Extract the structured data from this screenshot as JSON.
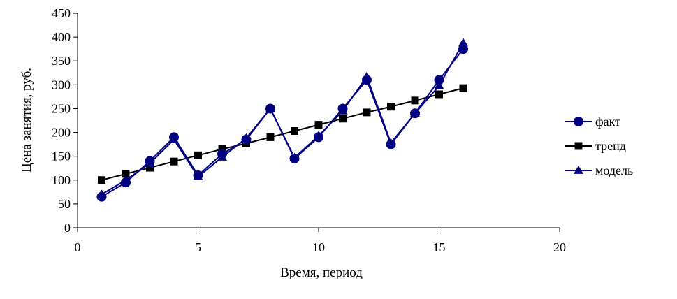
{
  "chart_data": {
    "type": "line",
    "title": "",
    "xlabel": "Время, период",
    "ylabel": "Цена занятия, руб.",
    "xlim": [
      0,
      20
    ],
    "ylim": [
      0,
      450
    ],
    "xticks": [
      0,
      5,
      10,
      15,
      20
    ],
    "yticks": [
      0,
      50,
      100,
      150,
      200,
      250,
      300,
      350,
      400,
      450
    ],
    "grid": false,
    "legend": "right",
    "series": [
      {
        "name": "факт",
        "marker": "circle",
        "color": "#000080",
        "x": [
          1,
          2,
          3,
          4,
          5,
          6,
          7,
          8,
          9,
          10,
          11,
          12,
          13,
          14,
          15,
          16
        ],
        "y": [
          65,
          95,
          140,
          190,
          110,
          155,
          185,
          250,
          145,
          190,
          250,
          310,
          175,
          240,
          310,
          375
        ]
      },
      {
        "name": "тренд",
        "marker": "square",
        "color": "#000000",
        "x": [
          1,
          2,
          3,
          4,
          5,
          6,
          7,
          8,
          9,
          10,
          11,
          12,
          13,
          14,
          15,
          16
        ],
        "y": [
          100,
          113,
          126,
          139,
          152,
          165,
          177,
          190,
          203,
          216,
          229,
          242,
          254,
          267,
          280,
          293
        ]
      },
      {
        "name": "модель",
        "marker": "triangle",
        "color": "#000080",
        "x": [
          1,
          2,
          3,
          4,
          5,
          6,
          7,
          8,
          9,
          10,
          11,
          12,
          13,
          14,
          15,
          16
        ],
        "y": [
          70,
          100,
          135,
          185,
          107,
          148,
          188,
          250,
          147,
          193,
          245,
          317,
          178,
          240,
          298,
          388
        ]
      }
    ]
  }
}
